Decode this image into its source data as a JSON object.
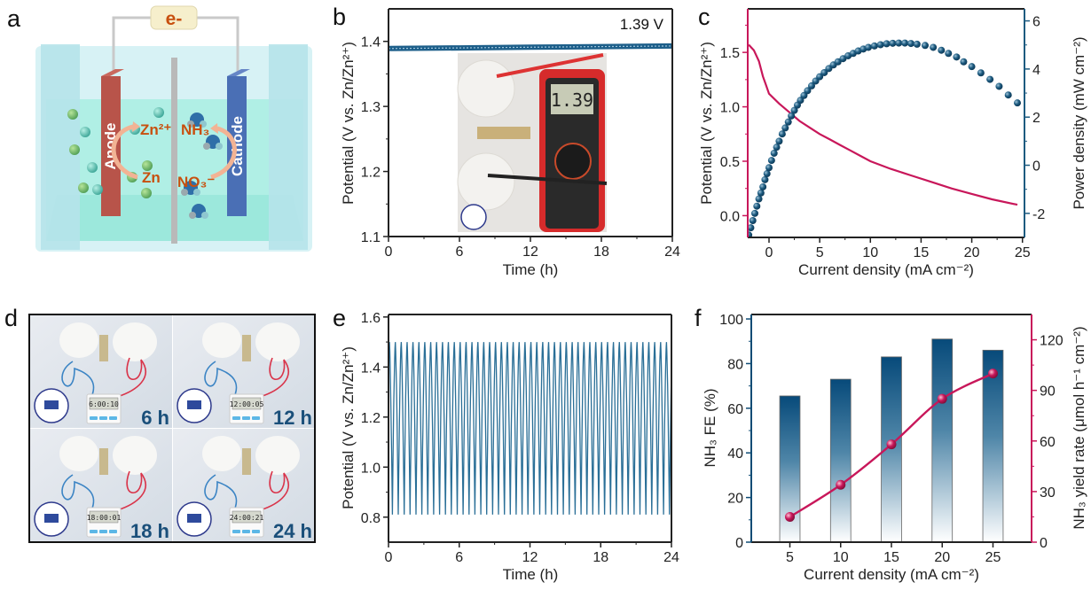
{
  "figure": {
    "panel_labels": [
      "a",
      "b",
      "c",
      "d",
      "e",
      "f"
    ]
  },
  "schematic": {
    "electron": "e-",
    "anode": "Anode",
    "cathode": "Cathode",
    "zn_ion": "Zn²⁺",
    "zn": "Zn",
    "nh3": "NH₃",
    "no3": "NO₃⁻",
    "colors": {
      "anode": "#b8544a",
      "cathode": "#4a6fb5",
      "label": "#c8500f",
      "electrolyte": "#a9efe2"
    }
  },
  "photos": {
    "multimeter_reading": "1.39",
    "timers": [
      {
        "label": "6 h",
        "timer": "6:00:10"
      },
      {
        "label": "12 h",
        "timer": "12:00:05"
      },
      {
        "label": "18 h",
        "timer": "18:00:01"
      },
      {
        "label": "24 h",
        "timer": "24:00:21"
      }
    ]
  },
  "chart_data": [
    {
      "panel": "b",
      "type": "line",
      "xlabel": "Time (h)",
      "ylabel": "Potential  (V vs. Zn/Zn²⁺)",
      "xlim": [
        0,
        24
      ],
      "ylim": [
        1.1,
        1.45
      ],
      "x_ticks": [
        "0",
        "6",
        "12",
        "18",
        "24"
      ],
      "y_ticks": [
        "1.1",
        "1.2",
        "1.3",
        "1.4"
      ],
      "annotation": "1.39 V",
      "color": "#1d5f8a",
      "series": [
        {
          "points": [
            [
              0,
              1.389
            ],
            [
              6,
              1.39
            ],
            [
              12,
              1.391
            ],
            [
              18,
              1.392
            ],
            [
              24,
              1.393
            ]
          ]
        }
      ]
    },
    {
      "panel": "c",
      "type": "line+scatter",
      "xlabel": "Current density (mA cm⁻²)",
      "ylabel_left": "Potential  (V vs. Zn/Zn²⁺)",
      "ylabel_right": "Power density (mW cm⁻²)",
      "xlim": [
        -2.1,
        25.2
      ],
      "ylim_left": [
        -0.2,
        1.9
      ],
      "ylim_right": [
        -3,
        6.5
      ],
      "x_ticks": [
        "0",
        "5",
        "10",
        "15",
        "20",
        "25"
      ],
      "y_ticks_left": [
        "0.0",
        "0.5",
        "1.0",
        "1.5"
      ],
      "y_ticks_right": [
        "-2",
        "0",
        "2",
        "4",
        "6"
      ],
      "left_color": "#c8175a",
      "right_color": "#1d5b80",
      "series": [
        {
          "axis": "left",
          "style": "line",
          "color": "#c8175a",
          "points": [
            [
              -2,
              1.57
            ],
            [
              -1.5,
              1.52
            ],
            [
              -1,
              1.42
            ],
            [
              -0.6,
              1.28
            ],
            [
              -0.3,
              1.2
            ],
            [
              0,
              1.12
            ],
            [
              1,
              1.03
            ],
            [
              2,
              0.95
            ],
            [
              3,
              0.87
            ],
            [
              4,
              0.81
            ],
            [
              5,
              0.75
            ],
            [
              6,
              0.7
            ],
            [
              7,
              0.65
            ],
            [
              8,
              0.6
            ],
            [
              9,
              0.55
            ],
            [
              10,
              0.5
            ],
            [
              12,
              0.43
            ],
            [
              14,
              0.37
            ],
            [
              16,
              0.31
            ],
            [
              18,
              0.25
            ],
            [
              20,
              0.2
            ],
            [
              22,
              0.15
            ],
            [
              24.5,
              0.1
            ]
          ]
        },
        {
          "axis": "right",
          "style": "scatter",
          "color": "#1d5b80",
          "points": [
            [
              -2,
              -2.9
            ],
            [
              -1.8,
              -2.6
            ],
            [
              -1.6,
              -2.3
            ],
            [
              -1.4,
              -2.0
            ],
            [
              -1.2,
              -1.7
            ],
            [
              -1,
              -1.4
            ],
            [
              -0.8,
              -1.15
            ],
            [
              -0.6,
              -0.9
            ],
            [
              -0.4,
              -0.6
            ],
            [
              -0.2,
              -0.35
            ],
            [
              0,
              -0.1
            ],
            [
              0.25,
              0.2
            ],
            [
              0.5,
              0.5
            ],
            [
              0.75,
              0.75
            ],
            [
              1,
              1.0
            ],
            [
              1.3,
              1.3
            ],
            [
              1.6,
              1.55
            ],
            [
              1.9,
              1.8
            ],
            [
              2.2,
              2.05
            ],
            [
              2.5,
              2.28
            ],
            [
              2.8,
              2.5
            ],
            [
              3.1,
              2.7
            ],
            [
              3.45,
              2.9
            ],
            [
              3.8,
              3.1
            ],
            [
              4.2,
              3.3
            ],
            [
              4.6,
              3.5
            ],
            [
              5,
              3.68
            ],
            [
              5.45,
              3.85
            ],
            [
              5.9,
              4.02
            ],
            [
              6.35,
              4.17
            ],
            [
              6.8,
              4.3
            ],
            [
              7.3,
              4.43
            ],
            [
              7.8,
              4.55
            ],
            [
              8.3,
              4.65
            ],
            [
              8.8,
              4.75
            ],
            [
              9.3,
              4.83
            ],
            [
              9.8,
              4.9
            ],
            [
              10.4,
              4.96
            ],
            [
              11,
              5.01
            ],
            [
              11.6,
              5.05
            ],
            [
              12.2,
              5.07
            ],
            [
              12.8,
              5.08
            ],
            [
              13.4,
              5.08
            ],
            [
              14,
              5.06
            ],
            [
              14.6,
              5.03
            ],
            [
              15.4,
              4.98
            ],
            [
              16.2,
              4.9
            ],
            [
              17,
              4.78
            ],
            [
              17.7,
              4.65
            ],
            [
              18.5,
              4.5
            ],
            [
              19.2,
              4.3
            ],
            [
              20,
              4.1
            ],
            [
              20.9,
              3.84
            ],
            [
              21.8,
              3.57
            ],
            [
              22.7,
              3.28
            ],
            [
              23.6,
              2.92
            ],
            [
              24.5,
              2.59
            ]
          ]
        }
      ]
    },
    {
      "panel": "e",
      "type": "line",
      "xlabel": "Time (h)",
      "ylabel": "Potential  (V vs. Zn/Zn²⁺)",
      "xlim": [
        0,
        24
      ],
      "ylim": [
        0.7,
        1.61
      ],
      "x_ticks": [
        "0",
        "6",
        "12",
        "18",
        "24"
      ],
      "y_ticks": [
        "0.8",
        "1.0",
        "1.2",
        "1.4",
        "1.6"
      ],
      "cycle_period_h": 0.5,
      "v_max": 1.5,
      "v_min": 0.81,
      "color": "#2a6f97"
    },
    {
      "panel": "f",
      "type": "bar+line",
      "xlabel": "Current density (mA cm⁻²)",
      "ylabel_left": "NH₃ FE (%)",
      "ylabel_right": "NH₃ yield rate (μmol h⁻¹ cm⁻²)",
      "categories": [
        "5",
        "10",
        "15",
        "20",
        "25"
      ],
      "x": [
        5,
        10,
        15,
        20,
        25
      ],
      "xlim": [
        1.2,
        28.8
      ],
      "ylim_left": [
        0,
        102
      ],
      "ylim_right": [
        0,
        135
      ],
      "y_ticks_left": [
        "0",
        "20",
        "40",
        "60",
        "80",
        "100"
      ],
      "y_ticks_right": [
        "0",
        "30",
        "60",
        "90",
        "120"
      ],
      "bar_values_fe": [
        65.5,
        73,
        83,
        91,
        86
      ],
      "line_values_yield": [
        15,
        34,
        58,
        85,
        100
      ],
      "left_color": "#0f4c75",
      "right_color": "#c8175a"
    }
  ]
}
